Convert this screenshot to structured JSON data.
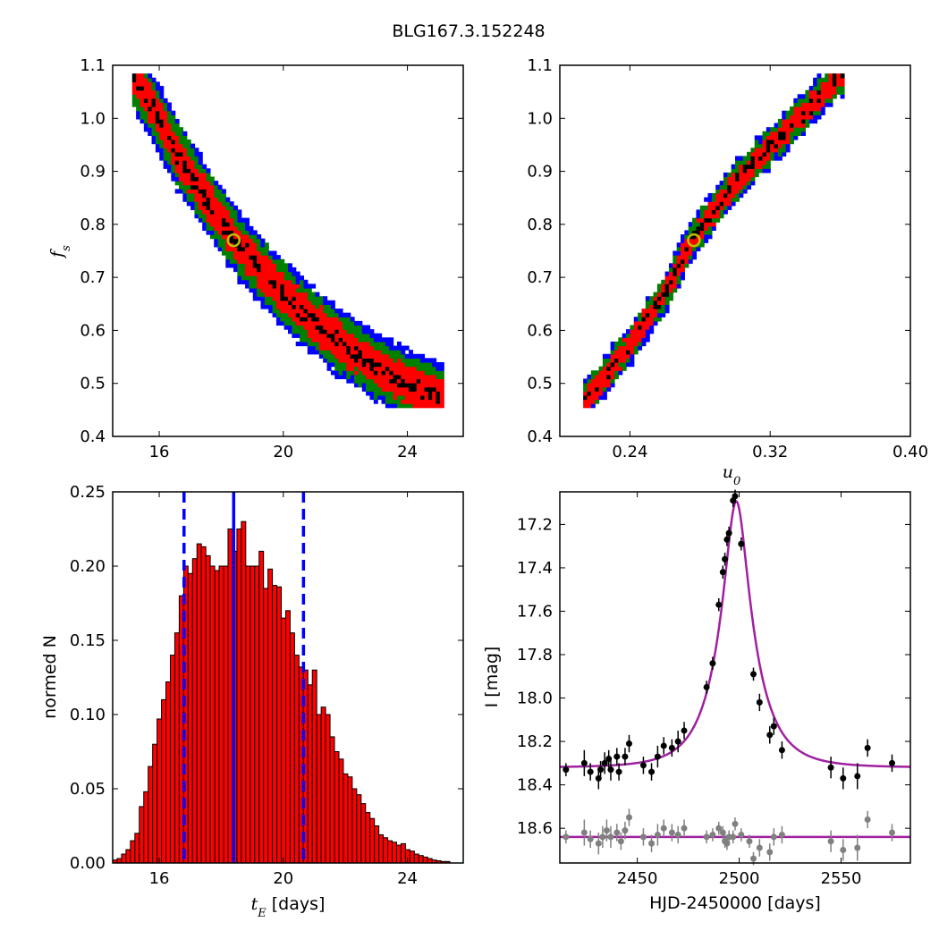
{
  "title": "BLG167.3.152248",
  "colors": {
    "sigma3": "#0000ff",
    "sigma2": "#008000",
    "sigma1": "#ff0000",
    "best": "#000000",
    "marker": "#bfbf00",
    "hist_bar": "#ff0000",
    "hist_edge": "#000000",
    "median_line": "#0000ff",
    "model": "#a020a0",
    "data_main": "#000000",
    "data_resid": "#808080"
  },
  "chart_data": [
    {
      "id": "ts-vs-tE",
      "type": "heatmap",
      "xlabel": "",
      "ylabel": "f",
      "ylabel_sub": "s",
      "xlim": [
        14.5,
        25.8
      ],
      "ylim": [
        0.4,
        1.1
      ],
      "xticks": [
        16,
        20,
        24
      ],
      "yticks": [
        0.4,
        0.5,
        0.6,
        0.7,
        0.8,
        0.9,
        1.0,
        1.1
      ],
      "xtick_labels": [
        "16",
        "20",
        "24"
      ],
      "ytick_labels": [
        "0.4",
        "0.5",
        "0.6",
        "0.7",
        "0.8",
        "0.9",
        "1.0",
        "1.1"
      ],
      "ridge": [
        [
          15.2,
          1.08
        ],
        [
          16.0,
          1.0
        ],
        [
          16.6,
          0.93
        ],
        [
          17.4,
          0.86
        ],
        [
          18.3,
          0.78
        ],
        [
          19.2,
          0.72
        ],
        [
          20.0,
          0.67
        ],
        [
          21.0,
          0.615
        ],
        [
          22.0,
          0.57
        ],
        [
          23.0,
          0.53
        ],
        [
          24.0,
          0.5
        ],
        [
          25.0,
          0.475
        ]
      ],
      "best_fit": [
        18.4,
        0.77
      ]
    },
    {
      "id": "fs-vs-u0",
      "type": "heatmap",
      "xlabel": "u",
      "xlabel_sub": "0",
      "ylabel": "",
      "xlim": [
        0.2,
        0.4
      ],
      "ylim": [
        0.4,
        1.1
      ],
      "xticks": [
        0.24,
        0.32,
        0.4
      ],
      "yticks": [
        0.4,
        0.5,
        0.6,
        0.7,
        0.8,
        0.9,
        1.0,
        1.1
      ],
      "xtick_labels": [
        "0.24",
        "0.32",
        "0.40"
      ],
      "ytick_labels": [
        "0.4",
        "0.5",
        "0.6",
        "0.7",
        "0.8",
        "0.9",
        "1.0",
        "1.1"
      ],
      "ridge": [
        [
          0.215,
          0.468
        ],
        [
          0.24,
          0.575
        ],
        [
          0.26,
          0.67
        ],
        [
          0.275,
          0.77
        ],
        [
          0.3,
          0.88
        ],
        [
          0.33,
          0.98
        ],
        [
          0.36,
          1.08
        ]
      ],
      "best_fit": [
        0.2765,
        0.77
      ]
    },
    {
      "id": "tE-histogram",
      "type": "bar",
      "xlabel": "t",
      "xlabel_sub": "E",
      "xlabel_rest": " [days]",
      "ylabel": "normed N",
      "xlim": [
        14.5,
        25.8
      ],
      "ylim": [
        0.0,
        0.25
      ],
      "xticks": [
        16,
        20,
        24
      ],
      "yticks": [
        0.0,
        0.05,
        0.1,
        0.15,
        0.2,
        0.25
      ],
      "xtick_labels": [
        "16",
        "20",
        "24"
      ],
      "ytick_labels": [
        "0.00",
        "0.05",
        "0.10",
        "0.15",
        "0.20",
        "0.25"
      ],
      "bin_start": 14.5,
      "bin_width": 0.143,
      "values": [
        0.002,
        0.003,
        0.006,
        0.009,
        0.015,
        0.02,
        0.038,
        0.048,
        0.065,
        0.08,
        0.097,
        0.11,
        0.122,
        0.14,
        0.155,
        0.18,
        0.2,
        0.195,
        0.205,
        0.215,
        0.213,
        0.207,
        0.2,
        0.197,
        0.2,
        0.2,
        0.225,
        0.21,
        0.225,
        0.23,
        0.2,
        0.2,
        0.2,
        0.21,
        0.185,
        0.198,
        0.187,
        0.186,
        0.165,
        0.17,
        0.155,
        0.14,
        0.132,
        0.13,
        0.12,
        0.13,
        0.1,
        0.105,
        0.1,
        0.085,
        0.075,
        0.07,
        0.06,
        0.058,
        0.05,
        0.046,
        0.04,
        0.034,
        0.03,
        0.025,
        0.019,
        0.017,
        0.015,
        0.014,
        0.012,
        0.013,
        0.009,
        0.008,
        0.006,
        0.005,
        0.004,
        0.003,
        0.002,
        0.0015,
        0.001,
        0.001
      ],
      "median": 18.4,
      "interval": [
        16.8,
        20.65
      ]
    },
    {
      "id": "lightcurve",
      "type": "scatter",
      "xlabel": "HJD-2450000 [days]",
      "ylabel": "I [mag]",
      "xlim": [
        2412,
        2584
      ],
      "ylim": [
        18.76,
        17.05
      ],
      "xticks": [
        2450,
        2500,
        2550
      ],
      "yticks": [
        17.2,
        17.4,
        17.6,
        17.8,
        18.0,
        18.2,
        18.4,
        18.6
      ],
      "xtick_labels": [
        "2450",
        "2500",
        "2550"
      ],
      "ytick_labels": [
        "17.2",
        "17.4",
        "17.6",
        "17.8",
        "18.0",
        "18.2",
        "18.4",
        "18.6"
      ],
      "model": {
        "t0": 2498.6,
        "tE": 18.4,
        "u0": 0.2765,
        "fs": 0.77,
        "Ibase": 18.32
      },
      "resid_level": 18.64,
      "series": [
        {
          "role": "data",
          "points": [
            [
              2415,
              18.33,
              0.03
            ],
            [
              2424,
              18.3,
              0.06
            ],
            [
              2427,
              18.34,
              0.04
            ],
            [
              2431,
              18.37,
              0.05
            ],
            [
              2432,
              18.33,
              0.04
            ],
            [
              2434,
              18.3,
              0.05
            ],
            [
              2436,
              18.28,
              0.04
            ],
            [
              2437,
              18.33,
              0.05
            ],
            [
              2440,
              18.27,
              0.04
            ],
            [
              2441,
              18.34,
              0.04
            ],
            [
              2444,
              18.27,
              0.04
            ],
            [
              2446,
              18.21,
              0.04
            ],
            [
              2453,
              18.31,
              0.04
            ],
            [
              2457,
              18.34,
              0.04
            ],
            [
              2460,
              18.27,
              0.05
            ],
            [
              2463,
              18.22,
              0.04
            ],
            [
              2467,
              18.23,
              0.04
            ],
            [
              2470,
              18.2,
              0.05
            ],
            [
              2473,
              18.15,
              0.04
            ],
            [
              2484,
              17.95,
              0.03
            ],
            [
              2487,
              17.84,
              0.03
            ],
            [
              2490,
              17.57,
              0.03
            ],
            [
              2492,
              17.42,
              0.03
            ],
            [
              2493,
              17.36,
              0.03
            ],
            [
              2494,
              17.27,
              0.03
            ],
            [
              2495,
              17.24,
              0.03
            ],
            [
              2497,
              17.09,
              0.03
            ],
            [
              2498,
              17.07,
              0.03
            ],
            [
              2501,
              17.29,
              0.03
            ],
            [
              2507,
              17.89,
              0.03
            ],
            [
              2510,
              18.02,
              0.04
            ],
            [
              2515,
              18.17,
              0.04
            ],
            [
              2517,
              18.13,
              0.04
            ],
            [
              2521,
              18.24,
              0.04
            ],
            [
              2545,
              18.32,
              0.05
            ],
            [
              2551,
              18.37,
              0.05
            ],
            [
              2558,
              18.36,
              0.06
            ],
            [
              2563,
              18.23,
              0.04
            ],
            [
              2575,
              18.3,
              0.04
            ]
          ]
        },
        {
          "role": "residual",
          "points": [
            [
              2415,
              18.64,
              0.03
            ],
            [
              2424,
              18.62,
              0.06
            ],
            [
              2427,
              18.65,
              0.04
            ],
            [
              2431,
              18.67,
              0.05
            ],
            [
              2433,
              18.64,
              0.05
            ],
            [
              2435,
              18.61,
              0.05
            ],
            [
              2437,
              18.64,
              0.05
            ],
            [
              2440,
              18.62,
              0.04
            ],
            [
              2442,
              18.66,
              0.04
            ],
            [
              2444,
              18.61,
              0.04
            ],
            [
              2446,
              18.55,
              0.04
            ],
            [
              2453,
              18.64,
              0.04
            ],
            [
              2457,
              18.67,
              0.04
            ],
            [
              2460,
              18.63,
              0.05
            ],
            [
              2463,
              18.6,
              0.04
            ],
            [
              2467,
              18.62,
              0.04
            ],
            [
              2470,
              18.63,
              0.04
            ],
            [
              2473,
              18.6,
              0.04
            ],
            [
              2484,
              18.64,
              0.03
            ],
            [
              2487,
              18.63,
              0.03
            ],
            [
              2490,
              18.6,
              0.03
            ],
            [
              2492,
              18.62,
              0.03
            ],
            [
              2493,
              18.66,
              0.03
            ],
            [
              2494,
              18.67,
              0.03
            ],
            [
              2495,
              18.64,
              0.03
            ],
            [
              2497,
              18.64,
              0.03
            ],
            [
              2498,
              18.58,
              0.03
            ],
            [
              2501,
              18.63,
              0.03
            ],
            [
              2505,
              18.66,
              0.03
            ],
            [
              2507,
              18.74,
              0.03
            ],
            [
              2510,
              18.69,
              0.04
            ],
            [
              2515,
              18.71,
              0.04
            ],
            [
              2517,
              18.64,
              0.04
            ],
            [
              2521,
              18.63,
              0.04
            ],
            [
              2545,
              18.66,
              0.05
            ],
            [
              2551,
              18.7,
              0.05
            ],
            [
              2558,
              18.69,
              0.06
            ],
            [
              2563,
              18.56,
              0.04
            ],
            [
              2575,
              18.62,
              0.04
            ]
          ]
        }
      ]
    }
  ]
}
